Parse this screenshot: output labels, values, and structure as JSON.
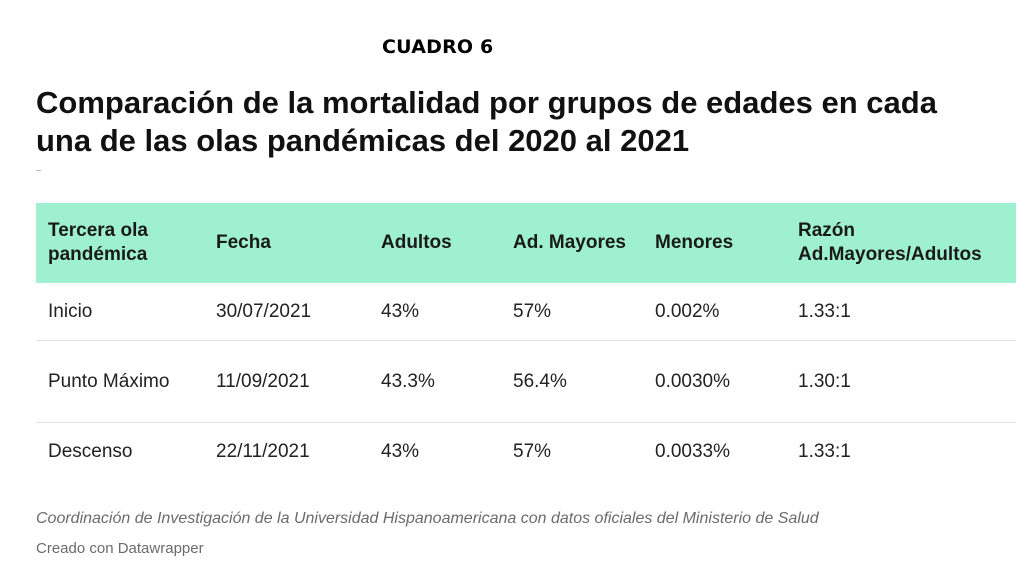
{
  "label": "CUADRO 6",
  "title": "Comparación de la mortalidad por grupos de edades en cada una de las olas pandémicas del 2020 al 2021",
  "table": {
    "header_color": "#9ef0d1",
    "columns": [
      "Tercera ola pandémica",
      "Fecha",
      "Adultos",
      "Ad. Mayores",
      "Menores",
      "Razón Ad.Mayores/Adultos"
    ],
    "rows": [
      [
        "Inicio",
        "30/07/2021",
        "43%",
        "57%",
        "0.002%",
        "1.33:1"
      ],
      [
        "Punto Máximo",
        "11/09/2021",
        "43.3%",
        "56.4%",
        "0.0030%",
        "1.30:1"
      ],
      [
        "Descenso",
        "22/11/2021",
        "43%",
        "57%",
        "0.0033%",
        "1.33:1"
      ]
    ]
  },
  "source": "Coordinación de Investigación de la Universidad Hispanoamericana con datos oficiales del Ministerio de Salud",
  "credit": "Creado con Datawrapper"
}
